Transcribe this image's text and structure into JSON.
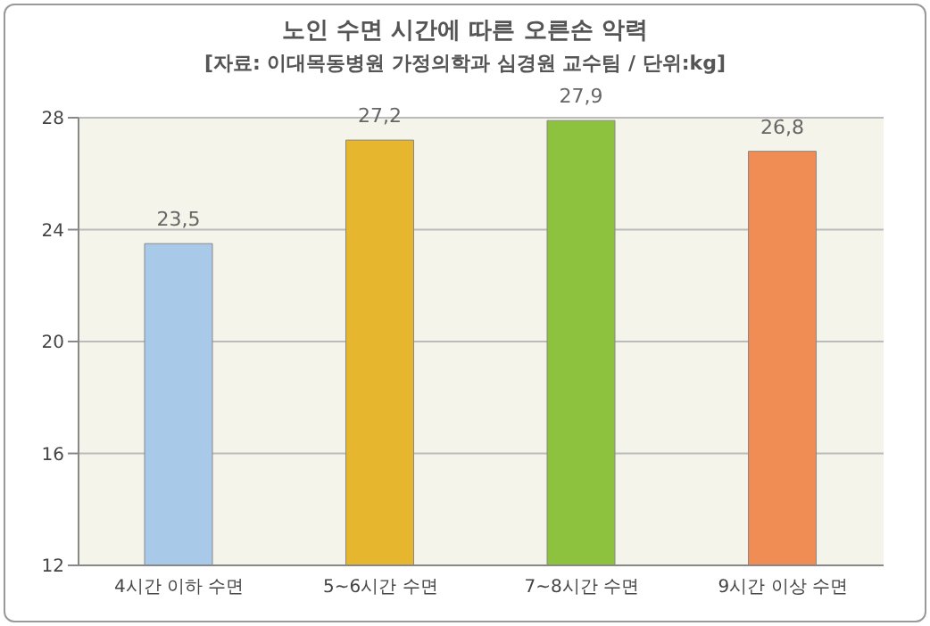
{
  "chart_data": {
    "type": "bar",
    "title": "노인 수면 시간에 따른 오른손 악력",
    "subtitle": "[자료: 이대목동병원 가정의학과 심경원 교수팀 / 단위:kg]",
    "categories": [
      "4시간 이하 수면",
      "5~6시간 수면",
      "7~8시간 수면",
      "9시간 이상 수면"
    ],
    "values": [
      23.5,
      27.2,
      27.9,
      26.8
    ],
    "value_labels": [
      "23,5",
      "27,2",
      "27,9",
      "26,8"
    ],
    "colors": [
      "#a9c9e9",
      "#e6b62e",
      "#8dc23e",
      "#ef8d55"
    ],
    "ylim": [
      12,
      28
    ],
    "yticks": [
      12,
      16,
      20,
      24,
      28
    ],
    "grid": "y"
  }
}
